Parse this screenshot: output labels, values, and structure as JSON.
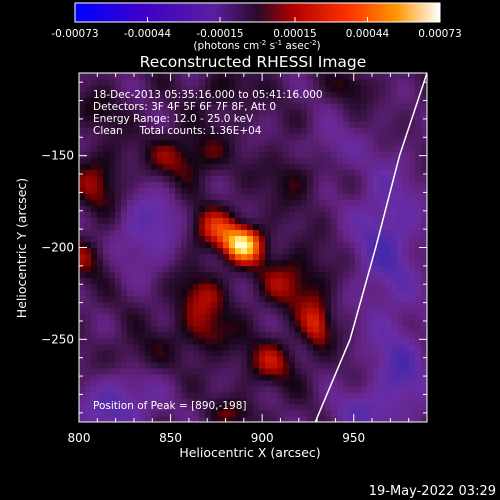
{
  "chart_data": {
    "type": "heatmap",
    "title": "Reconstructed RHESSI Image",
    "xlabel": "Heliocentric X (arcsec)",
    "ylabel": "Heliocentric Y (arcsec)",
    "xlim": [
      800,
      990
    ],
    "ylim": [
      -295,
      -105
    ],
    "x_ticks": [
      800,
      850,
      900,
      950
    ],
    "y_ticks": [
      -150,
      -200,
      -250
    ],
    "colorbar": {
      "ticks": [
        "-0.00073",
        "-0.00044",
        "-0.00015",
        "0.00015",
        "0.00044",
        "0.00073"
      ],
      "unit_text": "(photons cm",
      "unit_exp1": "-2",
      "unit_mid": " s",
      "unit_exp2": "-1",
      "unit_mid2": " asec",
      "unit_exp3": "-2",
      "unit_end": ")",
      "range": [
        -0.00073,
        0.00073
      ]
    },
    "annotations": [
      "18-Dec-2013 05:35:16.000 to 05:41:16.000",
      "Detectors: 3F 4F 5F 6F 7F 8F, Att 0",
      "Energy Range: 12.0 - 25.0 keV",
      "Clean     Total counts: 1.36E+04"
    ],
    "peak_label": "Position of Peak = [890,-198]",
    "peak": [
      890,
      -198
    ],
    "limb_points": [
      [
        990,
        -105
      ],
      [
        975,
        -150
      ],
      [
        962,
        -200
      ],
      [
        948,
        -250
      ],
      [
        929,
        -295
      ]
    ],
    "sources": [
      {
        "x": 890,
        "y": -198,
        "sx": 8,
        "sy": 7,
        "amp": 1.0
      },
      {
        "x": 873,
        "y": -190,
        "sx": 12,
        "sy": 9,
        "amp": 0.55
      },
      {
        "x": 918,
        "y": -218,
        "sx": 14,
        "sy": 12,
        "amp": 0.45
      },
      {
        "x": 930,
        "y": -242,
        "sx": 6,
        "sy": 9,
        "amp": 0.55
      },
      {
        "x": 865,
        "y": -228,
        "sx": 12,
        "sy": 12,
        "amp": 0.42
      },
      {
        "x": 870,
        "y": -248,
        "sx": 10,
        "sy": 8,
        "amp": 0.35
      },
      {
        "x": 858,
        "y": -150,
        "sx": 14,
        "sy": 10,
        "amp": 0.48
      },
      {
        "x": 812,
        "y": -165,
        "sx": 10,
        "sy": 14,
        "amp": 0.42
      },
      {
        "x": 805,
        "y": -205,
        "sx": 9,
        "sy": 8,
        "amp": 0.35
      },
      {
        "x": 832,
        "y": -258,
        "sx": 10,
        "sy": 8,
        "amp": 0.28
      },
      {
        "x": 905,
        "y": -262,
        "sx": 12,
        "sy": 9,
        "amp": 0.42
      },
      {
        "x": 918,
        "y": -160,
        "sx": 11,
        "sy": 10,
        "amp": 0.32
      },
      {
        "x": 880,
        "y": -115,
        "sx": 10,
        "sy": 8,
        "amp": 0.3
      },
      {
        "x": 948,
        "y": -112,
        "sx": 8,
        "sy": 6,
        "amp": 0.28
      },
      {
        "x": 812,
        "y": -125,
        "sx": 9,
        "sy": 7,
        "amp": 0.25
      },
      {
        "x": 885,
        "y": -290,
        "sx": 10,
        "sy": 6,
        "amp": 0.28
      },
      {
        "x": 838,
        "y": -190,
        "sx": 14,
        "sy": 16,
        "amp": -0.55
      },
      {
        "x": 822,
        "y": -285,
        "sx": 14,
        "sy": 12,
        "amp": -0.6
      },
      {
        "x": 968,
        "y": -195,
        "sx": 14,
        "sy": 30,
        "amp": -0.6
      },
      {
        "x": 975,
        "y": -270,
        "sx": 12,
        "sy": 20,
        "amp": -0.55
      },
      {
        "x": 935,
        "y": -145,
        "sx": 10,
        "sy": 10,
        "amp": -0.35
      },
      {
        "x": 950,
        "y": -290,
        "sx": 12,
        "sy": 8,
        "amp": -0.4
      }
    ]
  },
  "footer": {
    "timestamp": "19-May-2022 03:29"
  }
}
